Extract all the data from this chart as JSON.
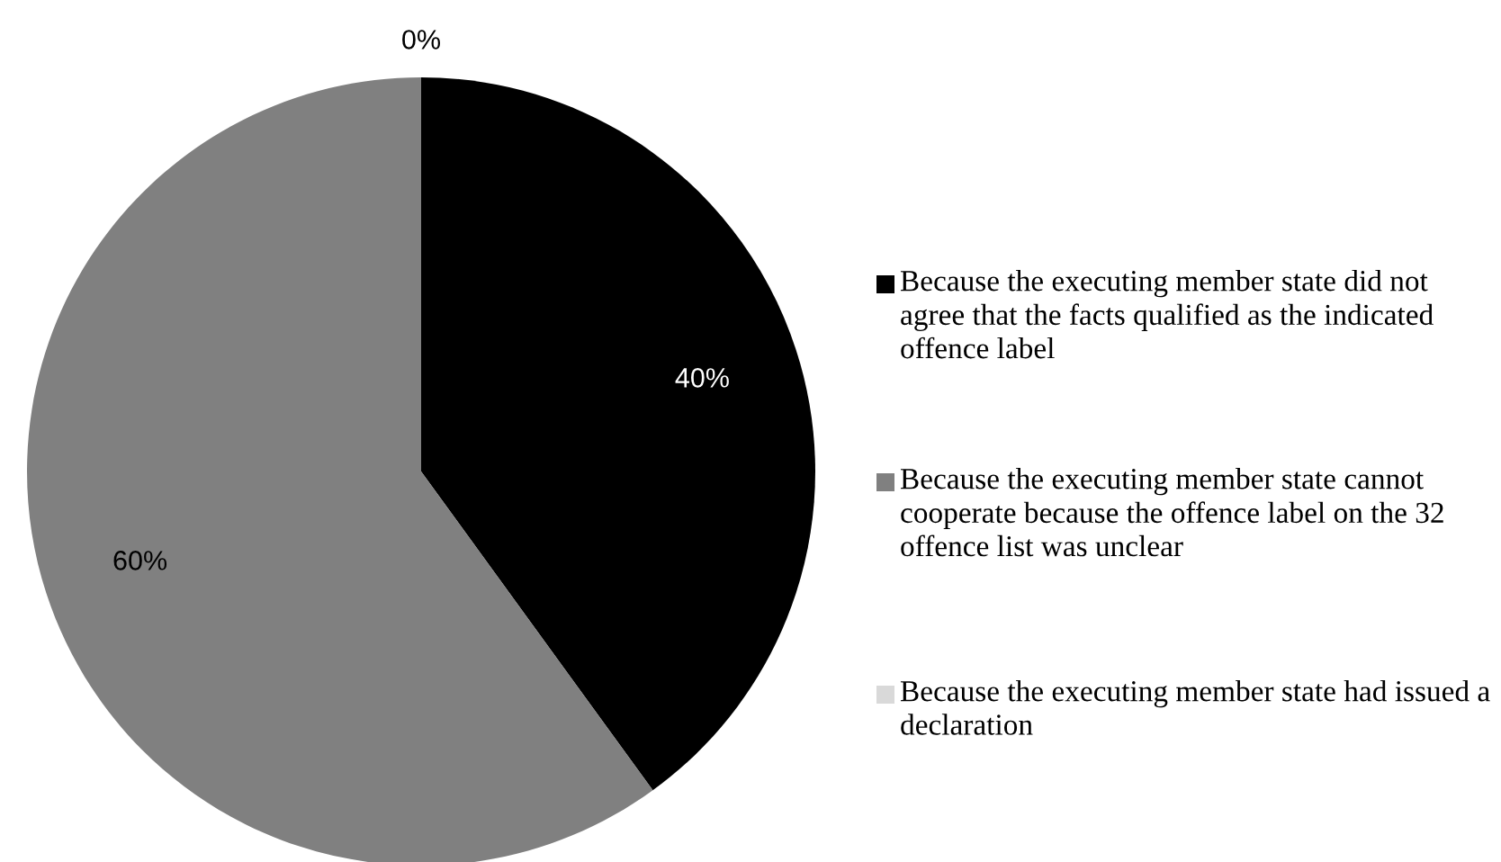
{
  "chart_data": {
    "type": "pie",
    "categories": [
      "Because the executing member state did not agree that the facts qualified as the indicated offence label",
      "Because the executing member state cannot cooperate because the offence label on the 32 offence list was unclear",
      "Because the executing member state had issued a declaration"
    ],
    "values": [
      40,
      60,
      0
    ],
    "value_labels": [
      "40%",
      "60%",
      "0%"
    ],
    "colors": [
      "#000000",
      "#808080",
      "#d9d9d9"
    ],
    "legend": "right"
  }
}
